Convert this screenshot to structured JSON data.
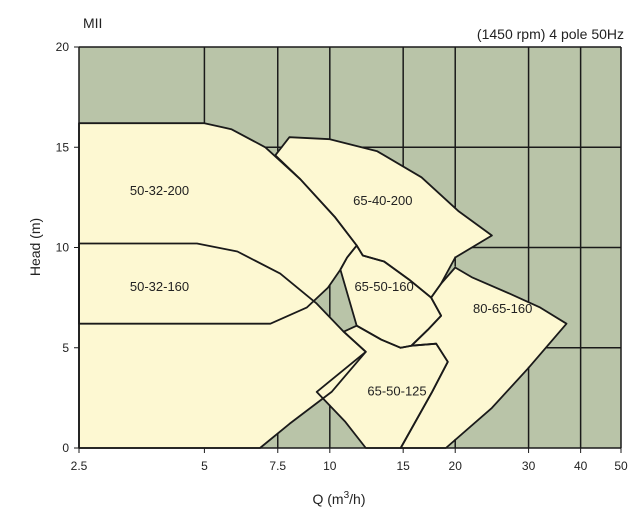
{
  "chart_data": {
    "type": "area",
    "title": "MII",
    "subtitle": "(1450 rpm) 4 pole 50Hz",
    "xlabel": "Q (m³/h)",
    "ylabel": "Head (m)",
    "x_scale": "log",
    "xlim": [
      2.5,
      50
    ],
    "ylim": [
      0,
      20
    ],
    "x_ticks": [
      2.5,
      5,
      7.5,
      10,
      15,
      20,
      30,
      40,
      50
    ],
    "y_ticks": [
      0,
      5,
      10,
      15,
      20
    ],
    "x_tick_labels": [
      "2.5",
      "5",
      "7.5",
      "10",
      "15",
      "20",
      "30",
      "40",
      "50"
    ],
    "y_tick_labels": [
      "0",
      "5",
      "10",
      "15",
      "20"
    ],
    "grid": true,
    "colors": {
      "plot_background": "#b9c4a8",
      "region_fill": "#fdf8d2",
      "grid": "#1a1a1a",
      "outline": "#1a1a1a"
    },
    "series": [
      {
        "name": "50-32-200",
        "label_at": [
          3.9,
          12.8
        ],
        "outline": [
          [
            2.5,
            16.2
          ],
          [
            5.0,
            16.2
          ],
          [
            5.8,
            15.9
          ],
          [
            7.0,
            15.0
          ],
          [
            8.5,
            13.4
          ],
          [
            10.3,
            11.5
          ],
          [
            11.6,
            10.1
          ],
          [
            11.0,
            9.5
          ],
          [
            10.6,
            8.9
          ],
          [
            9.9,
            8.0
          ],
          [
            8.8,
            7.0
          ],
          [
            7.2,
            6.2
          ],
          [
            2.5,
            6.2
          ]
        ]
      },
      {
        "name": "50-32-160",
        "label_at": [
          3.9,
          8.0
        ],
        "outline": [
          [
            2.5,
            10.2
          ],
          [
            4.8,
            10.2
          ],
          [
            6.0,
            9.8
          ],
          [
            7.6,
            8.7
          ],
          [
            9.3,
            7.2
          ],
          [
            10.8,
            5.8
          ],
          [
            12.2,
            4.8
          ],
          [
            10.1,
            2.8
          ],
          [
            8.0,
            1.2
          ],
          [
            6.8,
            0
          ],
          [
            2.5,
            0
          ]
        ]
      },
      {
        "name": "65-40-200",
        "label_at": [
          13.4,
          12.3
        ],
        "outline": [
          [
            8.0,
            15.5
          ],
          [
            10.0,
            15.4
          ],
          [
            13.0,
            14.8
          ],
          [
            16.6,
            13.5
          ],
          [
            20.4,
            11.8
          ],
          [
            24.5,
            10.6
          ],
          [
            20.0,
            9.5
          ],
          [
            18.5,
            8.2
          ],
          [
            17.5,
            7.5
          ],
          [
            15.5,
            8.4
          ],
          [
            13.5,
            9.3
          ],
          [
            12.0,
            9.6
          ],
          [
            11.6,
            10.1
          ],
          [
            10.3,
            11.5
          ],
          [
            8.5,
            13.4
          ],
          [
            7.4,
            14.6
          ]
        ]
      },
      {
        "name": "65-50-160",
        "label_at": [
          13.5,
          8.0
        ],
        "outline": [
          [
            11.6,
            10.1
          ],
          [
            12.0,
            9.6
          ],
          [
            13.5,
            9.3
          ],
          [
            15.5,
            8.4
          ],
          [
            17.5,
            7.5
          ],
          [
            18.5,
            6.6
          ],
          [
            17.2,
            5.9
          ],
          [
            15.7,
            5.1
          ],
          [
            14.8,
            5.0
          ],
          [
            13.3,
            5.4
          ],
          [
            11.6,
            6.1
          ],
          [
            10.6,
            8.9
          ],
          [
            11.0,
            9.5
          ]
        ]
      },
      {
        "name": "80-65-160",
        "label_at": [
          26.0,
          6.9
        ],
        "outline": [
          [
            17.5,
            7.5
          ],
          [
            18.5,
            8.2
          ],
          [
            20.0,
            9.0
          ],
          [
            22.0,
            8.5
          ],
          [
            27.0,
            7.7
          ],
          [
            32.0,
            7.0
          ],
          [
            37.0,
            6.2
          ],
          [
            30.0,
            4.0
          ],
          [
            24.5,
            2.0
          ],
          [
            19.0,
            0
          ],
          [
            14.8,
            0
          ],
          [
            17.6,
            2.8
          ],
          [
            19.2,
            4.3
          ],
          [
            18.0,
            5.2
          ],
          [
            15.7,
            5.1
          ],
          [
            17.2,
            5.9
          ],
          [
            18.5,
            6.6
          ]
        ]
      },
      {
        "name": "65-50-125",
        "label_at": [
          14.5,
          2.8
        ],
        "outline": [
          [
            11.6,
            6.1
          ],
          [
            13.3,
            5.4
          ],
          [
            14.8,
            5.0
          ],
          [
            15.7,
            5.1
          ],
          [
            18.0,
            5.2
          ],
          [
            19.2,
            4.3
          ],
          [
            17.6,
            2.8
          ],
          [
            14.8,
            0
          ],
          [
            12.2,
            0
          ],
          [
            10.9,
            1.3
          ],
          [
            9.3,
            2.8
          ],
          [
            12.2,
            4.8
          ],
          [
            10.8,
            5.8
          ]
        ]
      }
    ]
  }
}
